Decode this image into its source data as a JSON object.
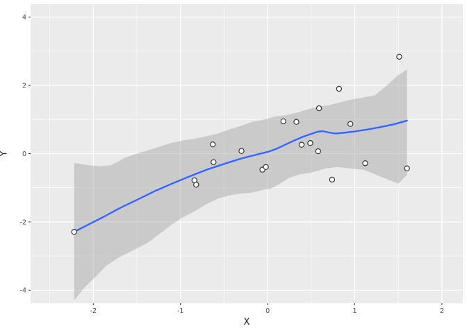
{
  "chart_data": {
    "type": "scatter",
    "title": "",
    "xlabel": "X",
    "ylabel": "Y",
    "legend": "none",
    "grid": "major+minor",
    "xlim": [
      -2.72,
      2.24
    ],
    "ylim": [
      -4.38,
      4.38
    ],
    "x_ticks": [
      -2,
      -1,
      0,
      1,
      2
    ],
    "x_tick_labels": [
      "-2",
      "-1",
      "0",
      "1",
      "2"
    ],
    "y_ticks": [
      -4,
      -2,
      0,
      2,
      4
    ],
    "y_tick_labels": [
      "-4",
      "-2",
      "0",
      "2",
      "4"
    ],
    "x_minor_ticks": [
      -2.5,
      -1.5,
      -0.5,
      0.5,
      1.5
    ],
    "y_minor_ticks": [
      -3,
      -1,
      1,
      3
    ],
    "points": [
      [
        -2.22,
        -2.29
      ],
      [
        -0.84,
        -0.78
      ],
      [
        -0.82,
        -0.91
      ],
      [
        -0.63,
        0.27
      ],
      [
        -0.62,
        -0.25
      ],
      [
        -0.3,
        0.08
      ],
      [
        -0.06,
        -0.47
      ],
      [
        -0.02,
        -0.39
      ],
      [
        0.18,
        0.95
      ],
      [
        0.33,
        0.93
      ],
      [
        0.39,
        0.26
      ],
      [
        0.49,
        0.31
      ],
      [
        0.58,
        0.07
      ],
      [
        0.59,
        1.33
      ],
      [
        0.74,
        -0.76
      ],
      [
        0.82,
        1.9
      ],
      [
        0.95,
        0.87
      ],
      [
        1.12,
        -0.28
      ],
      [
        1.51,
        2.84
      ],
      [
        1.6,
        -0.43
      ]
    ],
    "smooth_line": [
      [
        -2.22,
        -2.29
      ],
      [
        -2.05,
        -2.07
      ],
      [
        -1.88,
        -1.85
      ],
      [
        -1.7,
        -1.6
      ],
      [
        -1.48,
        -1.33
      ],
      [
        -1.28,
        -1.08
      ],
      [
        -1.08,
        -0.86
      ],
      [
        -0.9,
        -0.67
      ],
      [
        -0.7,
        -0.47
      ],
      [
        -0.5,
        -0.3
      ],
      [
        -0.3,
        -0.14
      ],
      [
        -0.1,
        -0.01
      ],
      [
        0.0,
        0.05
      ],
      [
        0.1,
        0.14
      ],
      [
        0.2,
        0.26
      ],
      [
        0.3,
        0.38
      ],
      [
        0.4,
        0.49
      ],
      [
        0.5,
        0.58
      ],
      [
        0.57,
        0.64
      ],
      [
        0.63,
        0.66
      ],
      [
        0.7,
        0.62
      ],
      [
        0.78,
        0.59
      ],
      [
        0.9,
        0.62
      ],
      [
        1.0,
        0.65
      ],
      [
        1.15,
        0.71
      ],
      [
        1.3,
        0.78
      ],
      [
        1.45,
        0.86
      ],
      [
        1.6,
        0.97
      ]
    ],
    "ribbon_upper": [
      [
        -2.22,
        -0.27
      ],
      [
        -2.05,
        -0.34
      ],
      [
        -1.92,
        -0.37
      ],
      [
        -1.8,
        -0.34
      ],
      [
        -1.72,
        -0.24
      ],
      [
        -1.64,
        -0.12
      ],
      [
        -1.5,
        0.0
      ],
      [
        -1.37,
        0.1
      ],
      [
        -1.24,
        0.21
      ],
      [
        -1.11,
        0.31
      ],
      [
        -0.97,
        0.39
      ],
      [
        -0.84,
        0.44
      ],
      [
        -0.7,
        0.51
      ],
      [
        -0.57,
        0.59
      ],
      [
        -0.44,
        0.71
      ],
      [
        -0.31,
        0.81
      ],
      [
        -0.18,
        0.93
      ],
      [
        -0.04,
        1.0
      ],
      [
        0.09,
        1.09
      ],
      [
        0.22,
        1.13
      ],
      [
        0.36,
        1.22
      ],
      [
        0.49,
        1.32
      ],
      [
        0.6,
        1.39
      ],
      [
        0.7,
        1.42
      ],
      [
        0.81,
        1.49
      ],
      [
        0.97,
        1.59
      ],
      [
        1.13,
        1.66
      ],
      [
        1.23,
        1.71
      ],
      [
        1.37,
        2.0
      ],
      [
        1.5,
        2.3
      ],
      [
        1.6,
        2.47
      ]
    ],
    "ribbon_lower": [
      [
        -2.22,
        -4.3
      ],
      [
        -2.09,
        -3.89
      ],
      [
        -1.98,
        -3.62
      ],
      [
        -1.85,
        -3.28
      ],
      [
        -1.72,
        -3.06
      ],
      [
        -1.56,
        -2.85
      ],
      [
        -1.38,
        -2.62
      ],
      [
        -1.24,
        -2.35
      ],
      [
        -1.11,
        -2.1
      ],
      [
        -0.97,
        -1.86
      ],
      [
        -0.84,
        -1.69
      ],
      [
        -0.71,
        -1.49
      ],
      [
        -0.57,
        -1.32
      ],
      [
        -0.44,
        -1.22
      ],
      [
        -0.31,
        -1.17
      ],
      [
        -0.18,
        -1.14
      ],
      [
        -0.04,
        -1.05
      ],
      [
        0.04,
        -1.02
      ],
      [
        0.14,
        -0.88
      ],
      [
        0.25,
        -0.71
      ],
      [
        0.36,
        -0.61
      ],
      [
        0.49,
        -0.56
      ],
      [
        0.67,
        -0.43
      ],
      [
        0.8,
        -0.39
      ],
      [
        0.97,
        -0.44
      ],
      [
        1.1,
        -0.47
      ],
      [
        1.23,
        -0.6
      ],
      [
        1.37,
        -0.75
      ],
      [
        1.5,
        -0.88
      ],
      [
        1.6,
        -0.62
      ]
    ],
    "ribbon_opacity": 0.4,
    "colors": {
      "background": "#FFFFFF",
      "panel_bg": "#EBEBEB",
      "grid_major": "#FFFFFF",
      "grid_minor": "#FFFFFF",
      "smooth_line": "#3366FF",
      "ribbon_fill": "#999999",
      "point_fill": "#FFFFFF",
      "point_stroke": "#333333",
      "tick_mark": "#333333",
      "tick_label": "#4D4D4D",
      "axis_title": "#1A1A1A"
    }
  }
}
